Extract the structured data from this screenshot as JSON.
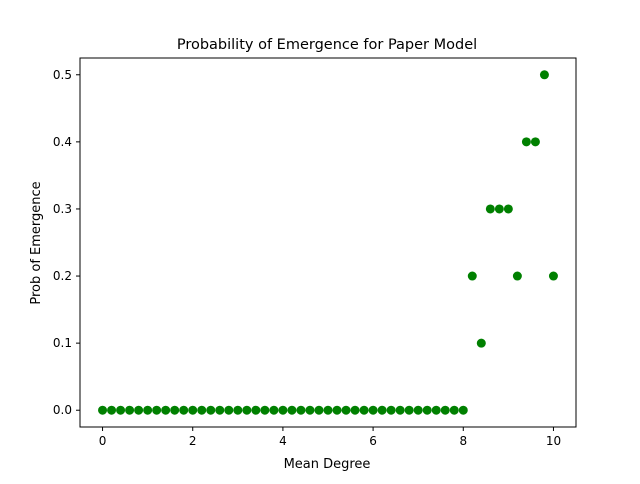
{
  "chart_data": {
    "type": "scatter",
    "title": "Probability of Emergence for Paper Model",
    "xlabel": "Mean Degree",
    "ylabel": "Prob of Emergence",
    "xlim": [
      -0.5,
      10.5
    ],
    "ylim": [
      -0.025,
      0.525
    ],
    "xticks": [
      0,
      2,
      4,
      6,
      8,
      10
    ],
    "xtick_labels": [
      "0",
      "2",
      "4",
      "6",
      "8",
      "10"
    ],
    "yticks": [
      0.0,
      0.1,
      0.2,
      0.3,
      0.4,
      0.5
    ],
    "ytick_labels": [
      "0.0",
      "0.1",
      "0.2",
      "0.3",
      "0.4",
      "0.5"
    ],
    "grid": false,
    "marker_color": "#008000",
    "x": [
      0.0,
      0.2,
      0.4,
      0.6,
      0.8,
      1.0,
      1.2,
      1.4,
      1.6,
      1.8,
      2.0,
      2.2,
      2.4,
      2.6,
      2.8,
      3.0,
      3.2,
      3.4,
      3.6,
      3.8,
      4.0,
      4.2,
      4.4,
      4.6,
      4.8,
      5.0,
      5.2,
      5.4,
      5.6,
      5.8,
      6.0,
      6.2,
      6.4,
      6.6,
      6.8,
      7.0,
      7.2,
      7.4,
      7.6,
      7.8,
      8.0,
      8.2,
      8.4,
      8.6,
      8.8,
      9.0,
      9.2,
      9.4,
      9.6,
      9.8,
      10.0
    ],
    "y": [
      0,
      0,
      0,
      0,
      0,
      0,
      0,
      0,
      0,
      0,
      0,
      0,
      0,
      0,
      0,
      0,
      0,
      0,
      0,
      0,
      0,
      0,
      0,
      0,
      0,
      0,
      0,
      0,
      0,
      0,
      0,
      0,
      0,
      0,
      0,
      0,
      0,
      0,
      0,
      0,
      0,
      0.2,
      0.1,
      0.3,
      0.3,
      0.3,
      0.2,
      0.4,
      0.4,
      0.5,
      0.2
    ]
  }
}
